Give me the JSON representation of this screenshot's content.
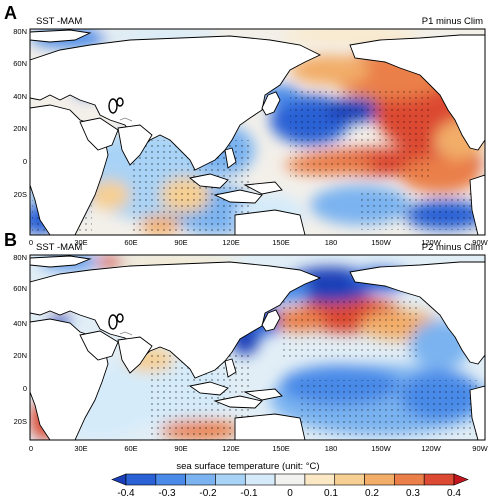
{
  "panels": [
    {
      "letter": "A",
      "title_left": "SST -MAM",
      "title_right": "P1 minus Clim",
      "lat_labels": [
        "80N",
        "60N",
        "40N",
        "20N",
        "0",
        "20S"
      ],
      "lon_labels": [
        "0",
        "30E",
        "60E",
        "90E",
        "120E",
        "150E",
        "180",
        "150W",
        "120W",
        "90W"
      ]
    },
    {
      "letter": "B",
      "title_left": "SST -MAM",
      "title_right": "P2 minus Clim",
      "lat_labels": [
        "80N",
        "60N",
        "40N",
        "20N",
        "0",
        "20S"
      ],
      "lon_labels": [
        "0",
        "30E",
        "60E",
        "90E",
        "120E",
        "150E",
        "180",
        "150W",
        "120W",
        "90W"
      ]
    }
  ],
  "colorbar": {
    "title": "sea surface temperature (unit: °C)",
    "tick_labels": [
      "-0.4",
      "-0.3",
      "-0.2",
      "-0.1",
      "0",
      "0.1",
      "0.2",
      "0.3",
      "0.4"
    ],
    "colors": [
      "#1a3fb8",
      "#2a62d6",
      "#4a8ae8",
      "#7ab3f0",
      "#a9d3f6",
      "#d5ebfa",
      "#f2f2f0",
      "#fbe8c4",
      "#f6cf92",
      "#f2ad69",
      "#ea7f4a",
      "#dc4a33",
      "#c4161e"
    ]
  },
  "colors": {
    "land": "#ffffff",
    "coast": "#000000",
    "neutral_ocean": "#eef4f4"
  }
}
